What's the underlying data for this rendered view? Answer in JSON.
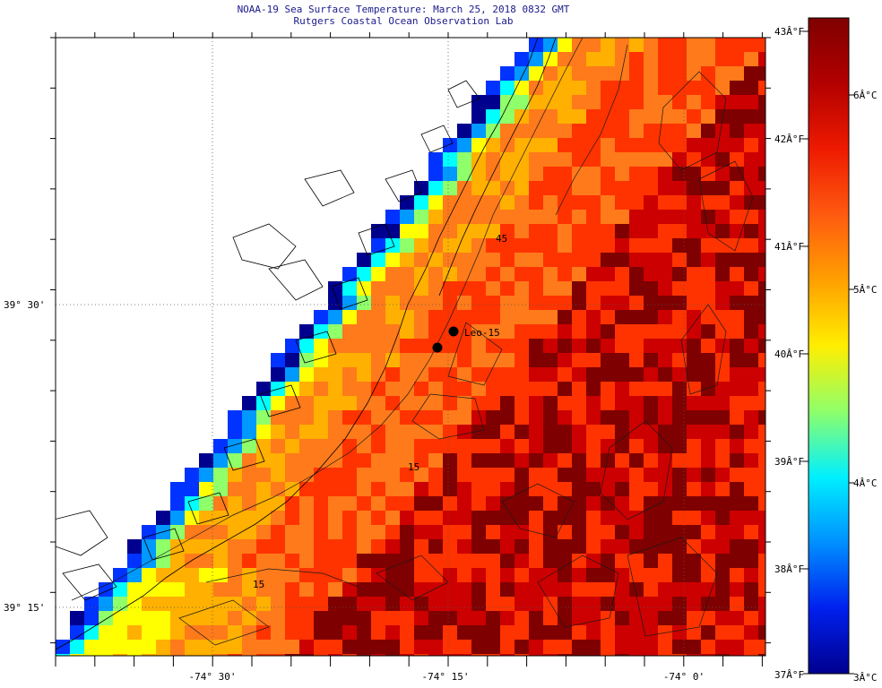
{
  "title_line1": "NOAA-19 Sea Surface Temperature:  March 25, 2018 0832 GMT",
  "title_line2": "Rutgers Coastal Ocean Observation Lab",
  "lat_labels": [
    "39° 30'",
    "39° 15'"
  ],
  "lon_labels": [
    "-74° 30'",
    "-74° 15'",
    "-74° 0'"
  ],
  "colorbar": {
    "fahrenheit_labels": [
      "43Â°F",
      "42Â°F",
      "41Â°F",
      "40Â°F",
      "39Â°F",
      "38Â°F",
      "37Â°F"
    ],
    "celsius_labels": [
      "6Â°C",
      "5Â°C",
      "4Â°C",
      "3Â°C"
    ],
    "colors": [
      "#7f0000",
      "#cc0000",
      "#ff3300",
      "#ff7a1a",
      "#ffb000",
      "#ffff00",
      "#8fff6a",
      "#00ffff",
      "#0099ff",
      "#0033ff",
      "#00008f"
    ]
  },
  "stations": [
    {
      "name": "Leo-15"
    }
  ],
  "contour_labels": [
    "15",
    "15",
    "45"
  ]
}
